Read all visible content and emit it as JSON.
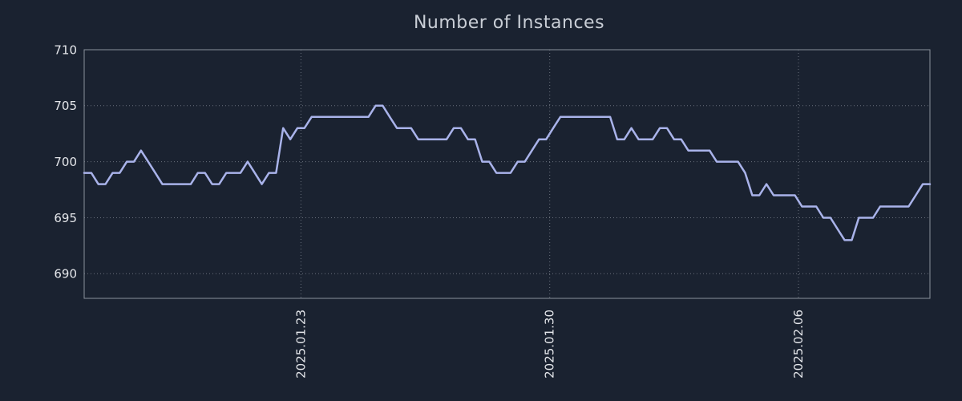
{
  "chart_data": {
    "type": "line",
    "title": "Number of Instances",
    "xlabel": "",
    "ylabel": "",
    "background_color": "#1a2230",
    "line_color": "#a9b3ea",
    "grid": true,
    "legend_position": "none",
    "ylim": [
      687.8,
      710
    ],
    "yticks": [
      690,
      695,
      700,
      705,
      710
    ],
    "x_domain_days": [
      0,
      23.8
    ],
    "xticks": [
      {
        "day": 6.1,
        "label": "2025.01.23"
      },
      {
        "day": 13.1,
        "label": "2025.01.30"
      },
      {
        "day": 20.1,
        "label": "2025.02.06"
      }
    ],
    "values": [
      699,
      699,
      698,
      698,
      699,
      699,
      700,
      700,
      701,
      700,
      699,
      698,
      698,
      698,
      698,
      698,
      699,
      699,
      698,
      698,
      699,
      699,
      699,
      700,
      699,
      698,
      699,
      699,
      703,
      702,
      703,
      703,
      704,
      704,
      704,
      704,
      704,
      704,
      704,
      704,
      704,
      705,
      705,
      704,
      703,
      703,
      703,
      702,
      702,
      702,
      702,
      702,
      703,
      703,
      702,
      702,
      700,
      700,
      699,
      699,
      699,
      700,
      700,
      701,
      702,
      702,
      703,
      704,
      704,
      704,
      704,
      704,
      704,
      704,
      704,
      702,
      702,
      703,
      702,
      702,
      702,
      703,
      703,
      702,
      702,
      701,
      701,
      701,
      701,
      700,
      700,
      700,
      700,
      699,
      697,
      697,
      698,
      697,
      697,
      697,
      697,
      696,
      696,
      696,
      695,
      695,
      694,
      693,
      693,
      695,
      695,
      695,
      696,
      696,
      696,
      696,
      696,
      697,
      698,
      698
    ]
  }
}
